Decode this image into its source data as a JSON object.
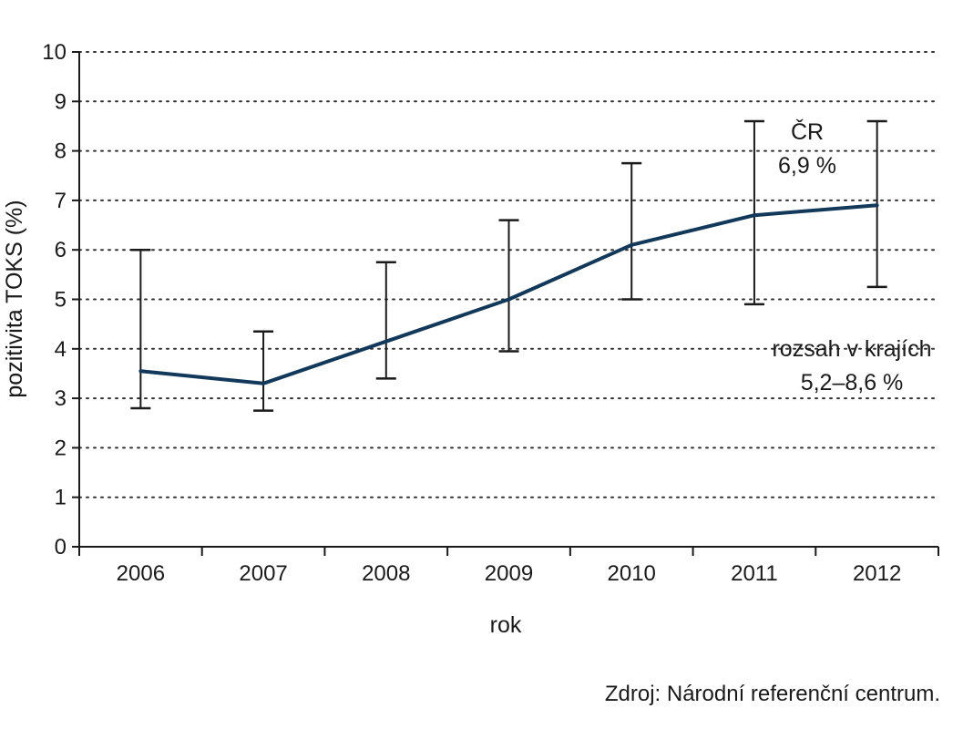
{
  "chart_data": {
    "type": "line",
    "x": [
      "2006",
      "2007",
      "2008",
      "2009",
      "2010",
      "2011",
      "2012"
    ],
    "series": [
      {
        "values": [
          3.55,
          3.3,
          4.15,
          5.0,
          6.1,
          6.7,
          6.9
        ],
        "error_low": [
          2.8,
          2.75,
          3.4,
          3.95,
          5.0,
          4.9,
          5.25
        ],
        "error_high": [
          6.0,
          4.35,
          5.75,
          6.6,
          7.75,
          8.6,
          8.6
        ],
        "color": "#12395a"
      }
    ],
    "xlabel": "rok",
    "ylabel": "pozitivita TOKS (%)",
    "ylim": [
      0,
      10
    ],
    "yticks": [
      "0",
      "1",
      "2",
      "3",
      "4",
      "5",
      "6",
      "7",
      "8",
      "9",
      "10"
    ],
    "grid": "horizontal-dotted",
    "annotations": {
      "cr_label": "ČR",
      "cr_value": "6,9 %",
      "range_label": "rozsah v krajích",
      "range_value": "5,2–8,6 %"
    }
  },
  "source": "Zdroj: Národní referenční centrum."
}
